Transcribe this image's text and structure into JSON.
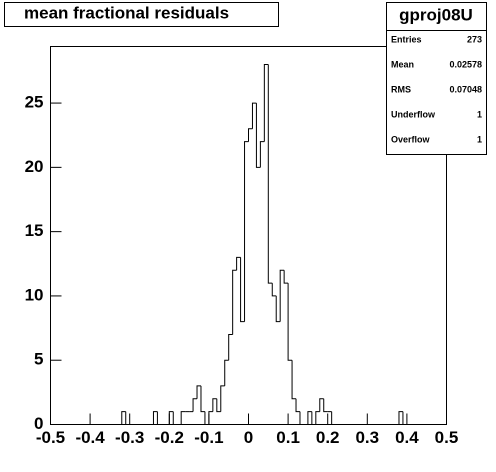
{
  "chart_data": {
    "type": "histogram",
    "title": "mean fractional residuals",
    "bins": [
      -0.5,
      -0.49,
      -0.48,
      -0.47,
      -0.46,
      -0.45,
      -0.44,
      -0.43,
      -0.42,
      -0.41,
      -0.4,
      -0.39,
      -0.38,
      -0.37,
      -0.36,
      -0.35,
      -0.34,
      -0.33,
      -0.32,
      -0.31,
      -0.3,
      -0.29,
      -0.28,
      -0.27,
      -0.26,
      -0.25,
      -0.24,
      -0.23,
      -0.22,
      -0.21,
      -0.2,
      -0.19,
      -0.18,
      -0.17,
      -0.16,
      -0.15,
      -0.14,
      -0.13,
      -0.12,
      -0.11,
      -0.1,
      -0.09,
      -0.08,
      -0.07,
      -0.06,
      -0.05,
      -0.04,
      -0.03,
      -0.02,
      -0.01,
      0,
      0.01,
      0.02,
      0.03,
      0.04,
      0.05,
      0.06,
      0.07,
      0.08,
      0.09,
      0.1,
      0.11,
      0.12,
      0.13,
      0.14,
      0.15,
      0.16,
      0.17,
      0.18,
      0.19,
      0.2,
      0.21,
      0.22,
      0.23,
      0.24,
      0.25,
      0.26,
      0.27,
      0.28,
      0.29,
      0.3,
      0.31,
      0.32,
      0.33,
      0.34,
      0.35,
      0.36,
      0.37,
      0.38,
      0.39,
      0.4,
      0.41,
      0.42,
      0.43,
      0.44,
      0.45,
      0.46,
      0.47,
      0.48,
      0.49,
      0.5
    ],
    "values": [
      0,
      0,
      0,
      0,
      0,
      0,
      0,
      0,
      0,
      0,
      0,
      0,
      0,
      0,
      0,
      0,
      0,
      0,
      1,
      0,
      0,
      0,
      0,
      0,
      0,
      0,
      1,
      0,
      0,
      0,
      1,
      0,
      0,
      1,
      1,
      1,
      2,
      3,
      1,
      0,
      1,
      2,
      1,
      3,
      5,
      7,
      12,
      13,
      8,
      22,
      23,
      25,
      20,
      22,
      28,
      11,
      10,
      8,
      12,
      11,
      5,
      2,
      1,
      0,
      0,
      1,
      0,
      1,
      2,
      1,
      1,
      0,
      0,
      0,
      0,
      0,
      0,
      0,
      0,
      0,
      0,
      0,
      0,
      0,
      0,
      0,
      0,
      0,
      1,
      0,
      0,
      0,
      0,
      0,
      0,
      0,
      0,
      0,
      0,
      0
    ],
    "color": "#000000",
    "xlim": [
      -0.5,
      0.5
    ],
    "xticks": [
      -0.5,
      -0.4,
      -0.3,
      -0.2,
      -0.1,
      0,
      0.1,
      0.2,
      0.3,
      0.4,
      0.5
    ],
    "ylim": [
      0,
      29.4
    ],
    "yticks": [
      0,
      5,
      10,
      15,
      20,
      25
    ],
    "stats": {
      "title": "gproj08U",
      "rows": [
        {
          "label": "Entries",
          "value": 273
        },
        {
          "label": "Mean",
          "value": 0.02578
        },
        {
          "label": "RMS",
          "value": 0.07048
        },
        {
          "label": "Underflow",
          "value": 1
        },
        {
          "label": "Overflow",
          "value": 1
        }
      ]
    }
  }
}
